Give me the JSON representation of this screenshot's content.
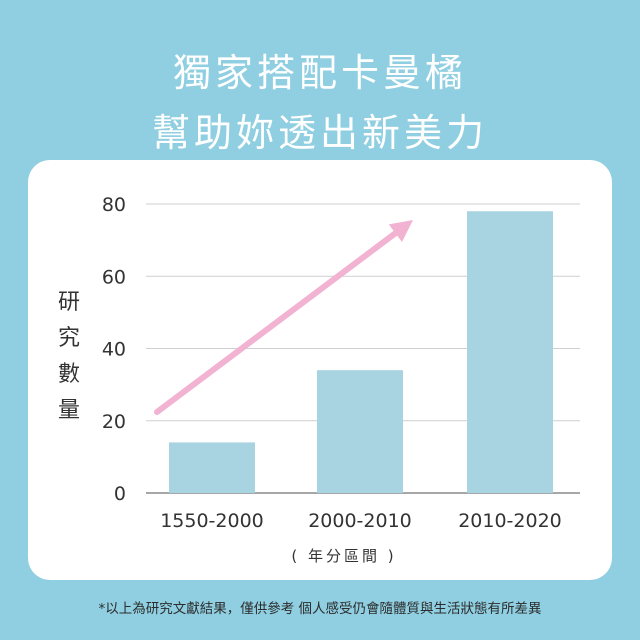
{
  "headline": {
    "line1": "獨家搭配卡曼橘",
    "line2": "幫助妳透出新美力"
  },
  "chart_data": {
    "type": "bar",
    "categories": [
      "1550-2000",
      "2000-2010",
      "2010-2020"
    ],
    "values": [
      14,
      34,
      78
    ],
    "ylabel": "研究數量",
    "xlabel": "( 年分區間 )",
    "ylim": [
      0,
      80
    ],
    "yticks": [
      0,
      20,
      40,
      60,
      80
    ],
    "grid": true,
    "bar_color": "#a8d3e0",
    "trend_arrow": {
      "color": "#f2b2d1"
    }
  },
  "footnote": "*以上為研究文獻結果，僅供參考 個人感受仍會隨體質與生活狀態有所差異",
  "colors": {
    "background": "#8fcfe1",
    "card": "#ffffff"
  }
}
